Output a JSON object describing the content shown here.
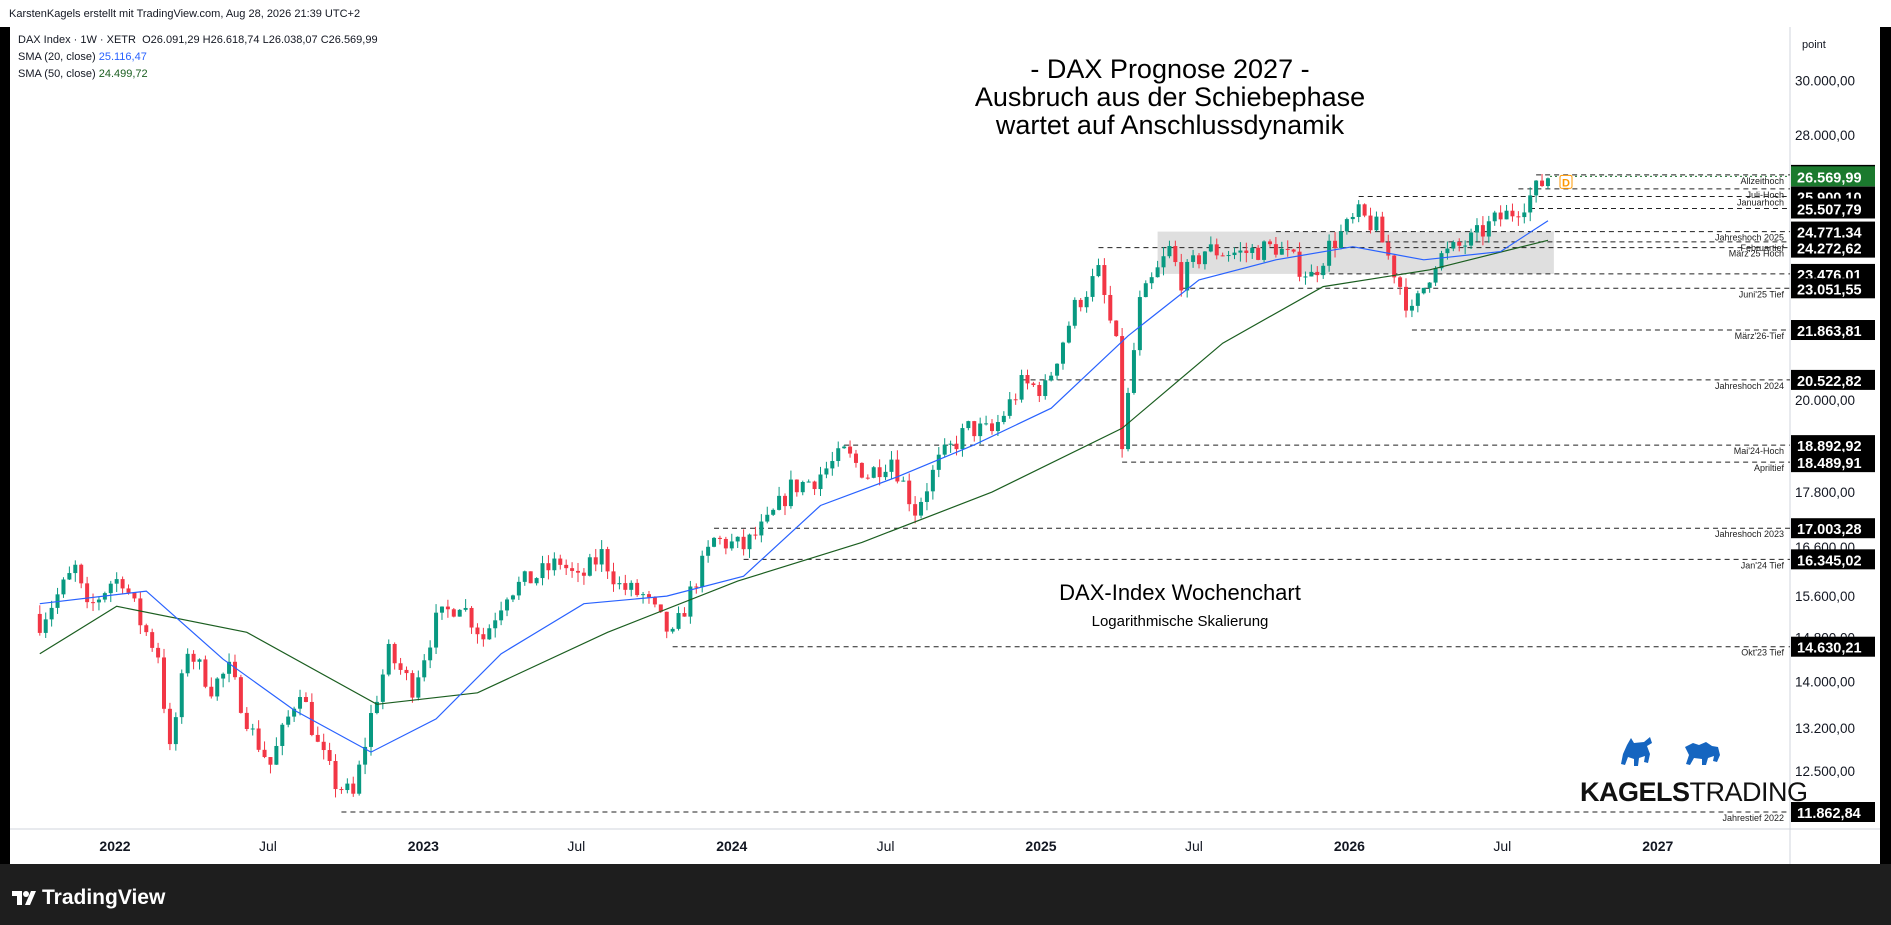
{
  "header": {
    "attribution": "KarstenKagels erstellt mit TradingView.com, Aug 28, 2026 21:39 UTC+2"
  },
  "legend": {
    "symbol": "DAX Index · 1W · XETR",
    "ohlc": "O26.091,29  H26.618,74  L26.038,07  C26.569,99",
    "sma20_label": "SMA (20, close)",
    "sma20_value": "25.116,47",
    "sma50_label": "SMA (50, close)",
    "sma50_value": "24.499,72"
  },
  "annotations": {
    "title_line1": "- DAX Prognose 2027 -",
    "title_line2": "Ausbruch aus der Schiebephase",
    "title_line3": "wartet auf Anschlussdynamik",
    "chart_label": "DAX-Index Wochenchart",
    "scale_label": "Logarithmische Skalierung",
    "marker": "D"
  },
  "brand": {
    "logo_bold": "KAGELS",
    "logo_light": "TRADING",
    "platform": "TradingView"
  },
  "colors": {
    "up": "#089981",
    "down": "#f23645",
    "sma20": "#2962ff",
    "sma50": "#1b5e20",
    "zone": "#d9d9d9",
    "last_price_bg": "#1b7a2e",
    "label_bg": "#000000",
    "marker": "#ff9800"
  },
  "chart_data": {
    "type": "candlestick",
    "y_scale": "log",
    "ylabel": "point",
    "y_ticks": [
      "12.500,00",
      "13.200,00",
      "14.000,00",
      "14.800,00",
      "15.600,00",
      "16.600,00",
      "17.800,00",
      "20.000,00",
      "28.000,00",
      "30.000,00"
    ],
    "x_ticks": [
      "2022",
      "Jul",
      "2023",
      "Jul",
      "2024",
      "Jul",
      "2025",
      "Jul",
      "2026",
      "Jul",
      "2027"
    ],
    "levels": [
      {
        "label": "Allzeithoch",
        "value": "26.618,74",
        "v": 26618.74,
        "x_start": "2026-08-10"
      },
      {
        "label": "Juli-Hoch",
        "value": "",
        "v": 26150,
        "x_start": "2026-07-20"
      },
      {
        "label": "Januarhoch",
        "value": "25.900,10",
        "v": 25900.1,
        "x_start": "2026-01-12"
      },
      {
        "label": "",
        "value": "25.507,79",
        "v": 25507.79,
        "x_start": null
      },
      {
        "label": "Jahreshoch 2025",
        "value": "24.771,34",
        "v": 24771.34,
        "x_start": "2025-10-06"
      },
      {
        "label": "Februartief",
        "value": "",
        "v": 24450,
        "x_start": "2026-02-02"
      },
      {
        "label": "März'25 Hoch",
        "value": "24.272,62",
        "v": 24272.62,
        "x_start": "2025-03-10"
      },
      {
        "label": "",
        "value": "23.476,01",
        "v": 23476.01,
        "x_start": "2025-11-17"
      },
      {
        "label": "Juni'25 Tief",
        "value": "23.051,55",
        "v": 23051.55,
        "x_start": "2025-06-16"
      },
      {
        "label": "März'26-Tief",
        "value": "21.863,81",
        "v": 21863.81,
        "x_start": "2026-03-16"
      },
      {
        "label": "Jahreshoch 2024",
        "value": "20.522,82",
        "v": 20522.82,
        "x_start": "2024-12-09"
      },
      {
        "label": "Mai'24-Hoch",
        "value": "18.892,92",
        "v": 18892.92,
        "x_start": "2024-05-13"
      },
      {
        "label": "Apriltief",
        "value": "18.489,91",
        "v": 18489.91,
        "x_start": "2025-04-07"
      },
      {
        "label": "Jahreshoch 2023",
        "value": "17.003,28",
        "v": 17003.28,
        "x_start": "2023-12-11"
      },
      {
        "label": "Jan'24 Tief",
        "value": "16.345,02",
        "v": 16345.02,
        "x_start": "2024-01-15"
      },
      {
        "label": "Okt'23 Tief",
        "value": "14.630,21",
        "v": 14630.21,
        "x_start": "2023-10-23"
      },
      {
        "label": "Jahrestief 2022",
        "value": "11.862,84",
        "v": 11862.84,
        "x_start": "2022-09-26"
      }
    ],
    "last_price": {
      "value": "26.569,99",
      "v": 26569.99
    },
    "consolidation_zone": {
      "x_start": "2025-05-19",
      "x_end": "2026-08-31",
      "y_low": 23476.01,
      "y_high": 24771.34
    },
    "weekly_close_path": [
      {
        "date": "2021-10-04",
        "close": 15100
      },
      {
        "date": "2021-11-15",
        "close": 16150
      },
      {
        "date": "2021-11-29",
        "close": 15300
      },
      {
        "date": "2021-12-27",
        "close": 15880
      },
      {
        "date": "2022-01-10",
        "close": 15950
      },
      {
        "date": "2022-01-31",
        "close": 15100
      },
      {
        "date": "2022-02-21",
        "close": 14500
      },
      {
        "date": "2022-03-07",
        "close": 12800
      },
      {
        "date": "2022-03-28",
        "close": 14600
      },
      {
        "date": "2022-04-25",
        "close": 13900
      },
      {
        "date": "2022-05-16",
        "close": 14200
      },
      {
        "date": "2022-06-13",
        "close": 13100
      },
      {
        "date": "2022-07-04",
        "close": 12600
      },
      {
        "date": "2022-08-08",
        "close": 13900
      },
      {
        "date": "2022-08-29",
        "close": 12900
      },
      {
        "date": "2022-09-19",
        "close": 12300
      },
      {
        "date": "2022-10-10",
        "close": 12100
      },
      {
        "date": "2022-10-31",
        "close": 13400
      },
      {
        "date": "2022-11-21",
        "close": 14500
      },
      {
        "date": "2022-12-19",
        "close": 13900
      },
      {
        "date": "2023-01-16",
        "close": 15100
      },
      {
        "date": "2023-02-13",
        "close": 15500
      },
      {
        "date": "2023-03-13",
        "close": 14800
      },
      {
        "date": "2023-04-10",
        "close": 15700
      },
      {
        "date": "2023-05-15",
        "close": 16000
      },
      {
        "date": "2023-06-12",
        "close": 16300
      },
      {
        "date": "2023-07-03",
        "close": 15900
      },
      {
        "date": "2023-07-31",
        "close": 16450
      },
      {
        "date": "2023-08-21",
        "close": 15800
      },
      {
        "date": "2023-09-18",
        "close": 15600
      },
      {
        "date": "2023-10-23",
        "close": 14800
      },
      {
        "date": "2023-11-20",
        "close": 15950
      },
      {
        "date": "2023-12-11",
        "close": 16750
      },
      {
        "date": "2024-01-15",
        "close": 16600
      },
      {
        "date": "2024-02-12",
        "close": 17100
      },
      {
        "date": "2024-03-11",
        "close": 17900
      },
      {
        "date": "2024-04-08",
        "close": 18100
      },
      {
        "date": "2024-05-13",
        "close": 18700
      },
      {
        "date": "2024-06-10",
        "close": 18200
      },
      {
        "date": "2024-07-08",
        "close": 18600
      },
      {
        "date": "2024-08-05",
        "close": 17400
      },
      {
        "date": "2024-09-02",
        "close": 18500
      },
      {
        "date": "2024-10-07",
        "close": 19300
      },
      {
        "date": "2024-11-04",
        "close": 19200
      },
      {
        "date": "2024-12-09",
        "close": 20400
      },
      {
        "date": "2025-01-06",
        "close": 20300
      },
      {
        "date": "2025-02-10",
        "close": 22500
      },
      {
        "date": "2025-03-10",
        "close": 23500
      },
      {
        "date": "2025-03-31",
        "close": 21400
      },
      {
        "date": "2025-04-07",
        "close": 18900
      },
      {
        "date": "2025-04-28",
        "close": 22600
      },
      {
        "date": "2025-06-02",
        "close": 24200
      },
      {
        "date": "2025-06-16",
        "close": 23300
      },
      {
        "date": "2025-07-14",
        "close": 24200
      },
      {
        "date": "2025-08-25",
        "close": 24100
      },
      {
        "date": "2025-10-06",
        "close": 24300
      },
      {
        "date": "2025-11-17",
        "close": 23400
      },
      {
        "date": "2025-12-08",
        "close": 24300
      },
      {
        "date": "2026-01-12",
        "close": 25300
      },
      {
        "date": "2026-02-02",
        "close": 24900
      },
      {
        "date": "2026-03-16",
        "close": 22300
      },
      {
        "date": "2026-04-13",
        "close": 23900
      },
      {
        "date": "2026-05-25",
        "close": 24500
      },
      {
        "date": "2026-06-22",
        "close": 25100
      },
      {
        "date": "2026-07-13",
        "close": 25400
      },
      {
        "date": "2026-08-03",
        "close": 25900
      },
      {
        "date": "2026-08-24",
        "close": 26570
      }
    ],
    "sma20_path": [
      {
        "date": "2021-10-04",
        "v": 15450
      },
      {
        "date": "2022-02-07",
        "v": 15700
      },
      {
        "date": "2022-05-09",
        "v": 14400
      },
      {
        "date": "2022-08-01",
        "v": 13500
      },
      {
        "date": "2022-10-31",
        "v": 12800
      },
      {
        "date": "2023-01-16",
        "v": 13350
      },
      {
        "date": "2023-04-03",
        "v": 14500
      },
      {
        "date": "2023-07-10",
        "v": 15450
      },
      {
        "date": "2023-10-16",
        "v": 15600
      },
      {
        "date": "2024-01-15",
        "v": 16000
      },
      {
        "date": "2024-04-15",
        "v": 17500
      },
      {
        "date": "2024-07-15",
        "v": 18150
      },
      {
        "date": "2024-10-14",
        "v": 18900
      },
      {
        "date": "2025-01-13",
        "v": 19800
      },
      {
        "date": "2025-04-14",
        "v": 21700
      },
      {
        "date": "2025-07-07",
        "v": 23300
      },
      {
        "date": "2025-10-06",
        "v": 23900
      },
      {
        "date": "2026-01-05",
        "v": 24300
      },
      {
        "date": "2026-03-30",
        "v": 23900
      },
      {
        "date": "2026-06-29",
        "v": 24150
      },
      {
        "date": "2026-08-24",
        "v": 25116
      }
    ],
    "sma50_path": [
      {
        "date": "2021-10-04",
        "v": 14500
      },
      {
        "date": "2022-01-03",
        "v": 15400
      },
      {
        "date": "2022-06-06",
        "v": 14900
      },
      {
        "date": "2022-11-07",
        "v": 13600
      },
      {
        "date": "2023-03-06",
        "v": 13800
      },
      {
        "date": "2023-08-07",
        "v": 14900
      },
      {
        "date": "2024-01-08",
        "v": 15900
      },
      {
        "date": "2024-06-03",
        "v": 16700
      },
      {
        "date": "2024-11-04",
        "v": 17800
      },
      {
        "date": "2025-04-07",
        "v": 19300
      },
      {
        "date": "2025-08-04",
        "v": 21500
      },
      {
        "date": "2025-12-01",
        "v": 23100
      },
      {
        "date": "2026-04-06",
        "v": 23600
      },
      {
        "date": "2026-08-24",
        "v": 24500
      }
    ]
  }
}
